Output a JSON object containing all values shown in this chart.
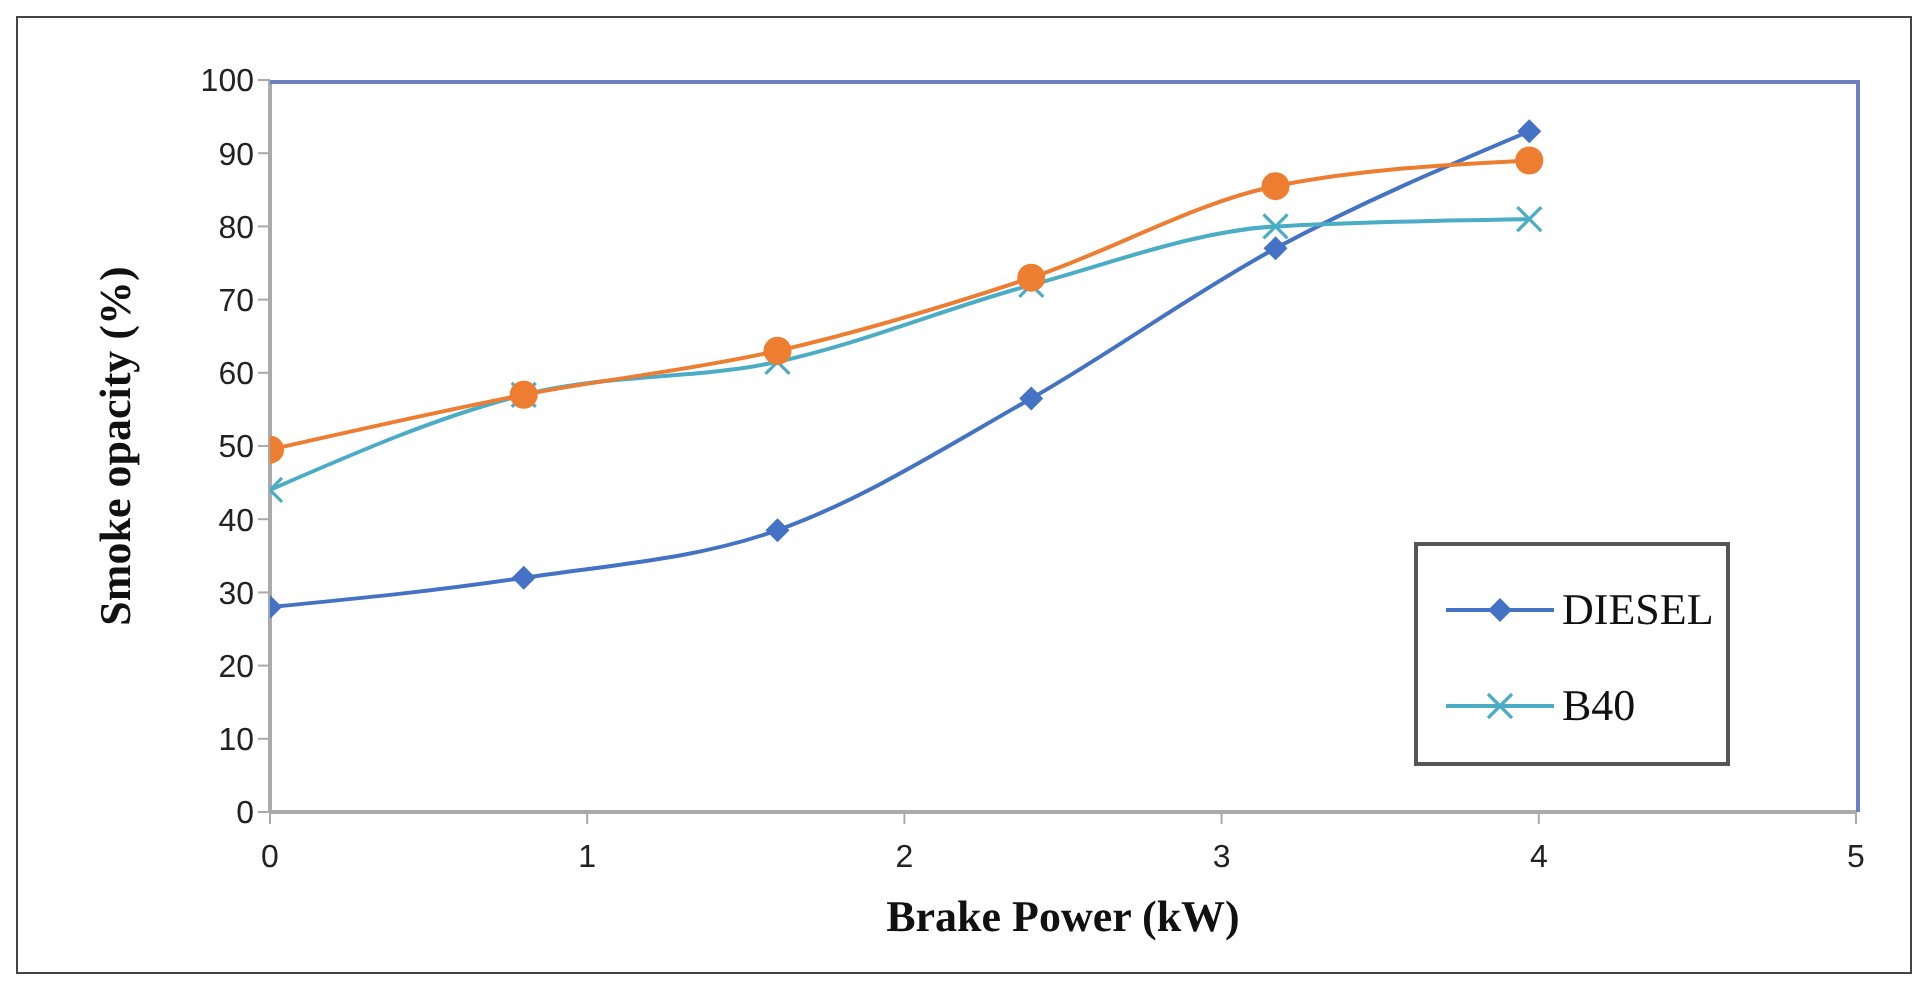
{
  "chart_data": {
    "type": "line",
    "xlabel": "Brake Power (kW)",
    "ylabel": "Smoke opacity (%)",
    "x": [
      0,
      0.8,
      1.6,
      2.4,
      3.17,
      3.97
    ],
    "series": [
      {
        "name": "DIESEL",
        "color": "#4472c4",
        "marker": "diamond",
        "values": [
          28,
          32,
          38.5,
          56.5,
          77,
          93
        ]
      },
      {
        "name": "B40",
        "color": "#4bacc6",
        "marker": "cross",
        "values": [
          44,
          57,
          61.5,
          72,
          80,
          81
        ]
      },
      {
        "color": "#ed7d31",
        "marker": "circle",
        "values": [
          49.5,
          57,
          63,
          73,
          85.5,
          89
        ]
      }
    ],
    "xlim": [
      0,
      5
    ],
    "xticks": [
      0,
      1,
      2,
      3,
      4,
      5
    ],
    "ylim": [
      0,
      100
    ],
    "yticks": [
      0,
      10,
      20,
      30,
      40,
      50,
      60,
      70,
      80,
      90,
      100
    ],
    "legend": "right",
    "line_style": "solid"
  }
}
